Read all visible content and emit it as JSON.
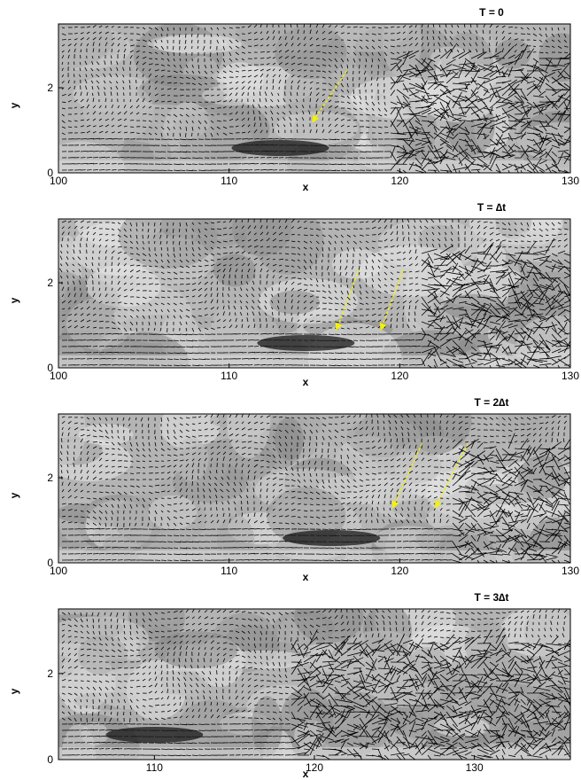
{
  "chart_data": [
    {
      "type": "vector-field",
      "title": "T = 0",
      "xlabel": "x",
      "ylabel": "y",
      "xlim": [
        100,
        130
      ],
      "ylim": [
        0,
        3.5
      ],
      "xticks": [
        100,
        110,
        120,
        130
      ],
      "xtick_labels": [
        "100",
        "110",
        "120",
        "130"
      ],
      "yticks": [
        0,
        2
      ],
      "ytick_labels": [
        "0",
        "2"
      ],
      "background": "grayscale contour",
      "arrow_color": "#000000",
      "annotation_color": "#f2f20a",
      "annotation_arrows": [
        {
          "from": [
            116.9,
            2.4
          ],
          "to": [
            114.9,
            1.2
          ]
        }
      ]
    },
    {
      "type": "vector-field",
      "title": "T = ∆t",
      "xlabel": "x",
      "ylabel": "y",
      "xlim": [
        100,
        130
      ],
      "ylim": [
        0,
        3.5
      ],
      "xticks": [
        100,
        110,
        120,
        130
      ],
      "xtick_labels": [
        "100",
        "110",
        "120",
        "130"
      ],
      "yticks": [
        0,
        2
      ],
      "ytick_labels": [
        "0",
        "2"
      ],
      "background": "grayscale contour",
      "arrow_color": "#000000",
      "annotation_color": "#f2f20a",
      "annotation_arrows": [
        {
          "from": [
            117.6,
            2.3
          ],
          "to": [
            116.3,
            0.9
          ]
        },
        {
          "from": [
            120.2,
            2.3
          ],
          "to": [
            118.9,
            0.9
          ]
        }
      ]
    },
    {
      "type": "vector-field",
      "title": "T = 2∆t",
      "xlabel": "x",
      "ylabel": "y",
      "xlim": [
        100,
        130
      ],
      "ylim": [
        0,
        3.5
      ],
      "xticks": [
        100,
        110,
        120,
        130
      ],
      "xtick_labels": [
        "100",
        "110",
        "120",
        "130"
      ],
      "yticks": [
        0,
        2
      ],
      "ytick_labels": [
        "0",
        "2"
      ],
      "background": "grayscale contour",
      "arrow_color": "#000000",
      "annotation_color": "#f2f20a",
      "annotation_arrows": [
        {
          "from": [
            121.3,
            2.8
          ],
          "to": [
            119.6,
            1.3
          ]
        },
        {
          "from": [
            124.0,
            2.8
          ],
          "to": [
            122.1,
            1.3
          ]
        }
      ]
    },
    {
      "type": "vector-field",
      "title": "T = 3∆t",
      "xlabel": "x",
      "ylabel": "y",
      "xlim": [
        104,
        136
      ],
      "ylim": [
        0,
        3.5
      ],
      "xticks": [
        110,
        120,
        130
      ],
      "xtick_labels": [
        "110",
        "120",
        "130"
      ],
      "yticks": [
        0,
        2
      ],
      "ytick_labels": [
        "0",
        "2"
      ],
      "background": "grayscale contour",
      "arrow_color": "#000000",
      "annotation_arrows": []
    }
  ]
}
